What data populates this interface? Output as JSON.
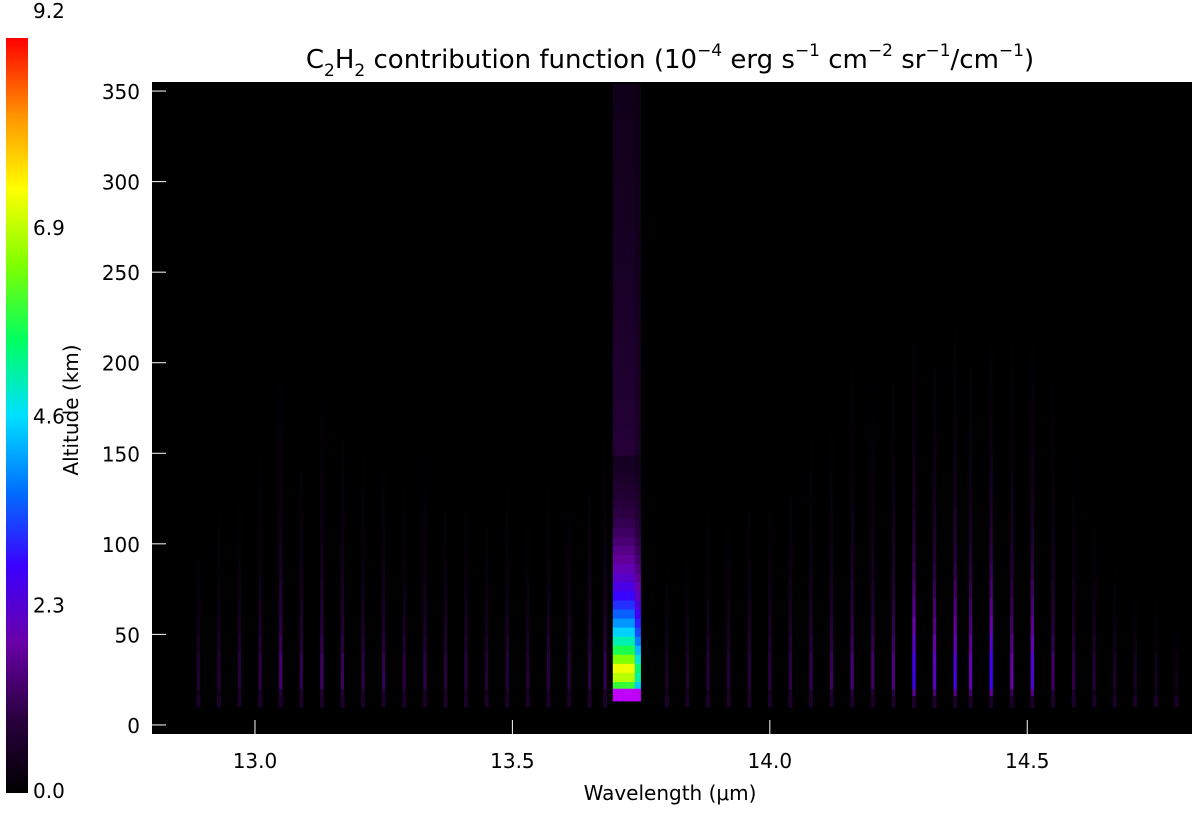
{
  "chart_data": {
    "type": "heatmap",
    "title": {
      "molecule_main": "C",
      "molecule_sub1": "2",
      "molecule_mid": "H",
      "molecule_sub2": "2",
      "rest_1": " contribution function (10",
      "exp_1": "−4",
      "rest_2": " erg s",
      "exp_2": "−1",
      "rest_3": " cm",
      "exp_3": "−2",
      "rest_4": " sr",
      "exp_4": "−1",
      "rest_5": "/cm",
      "exp_5": "−1",
      "rest_6": ")"
    },
    "xlabel": "Wavelength (μm)",
    "ylabel": "Altitude (km)",
    "xlim": [
      12.8,
      14.82
    ],
    "ylim": [
      -5,
      355
    ],
    "x_ticks": [
      {
        "value": 13.0,
        "label": "13.0"
      },
      {
        "value": 13.5,
        "label": "13.5"
      },
      {
        "value": 14.0,
        "label": "14.0"
      },
      {
        "value": 14.5,
        "label": "14.5"
      }
    ],
    "y_ticks": [
      {
        "value": 0,
        "label": "0"
      },
      {
        "value": 50,
        "label": "50"
      },
      {
        "value": 100,
        "label": "100"
      },
      {
        "value": 150,
        "label": "150"
      },
      {
        "value": 200,
        "label": "200"
      },
      {
        "value": 250,
        "label": "250"
      },
      {
        "value": 300,
        "label": "300"
      },
      {
        "value": 350,
        "label": "350"
      }
    ],
    "colorbar": {
      "range": [
        0.0,
        9.2
      ],
      "tick_labels": [
        {
          "value": 0.0,
          "label": "0.0"
        },
        {
          "value": 2.3,
          "label": "2.3"
        },
        {
          "value": 4.6,
          "label": "4.6"
        },
        {
          "value": 6.9,
          "label": "6.9"
        },
        {
          "value": 9.2,
          "label": "9.2"
        }
      ],
      "colors": [
        "#000000",
        "#2a0040",
        "#6a00a8",
        "#3b00ff",
        "#0070ff",
        "#00e0ff",
        "#00ff60",
        "#80ff00",
        "#ffff00",
        "#ff9000",
        "#ff0000"
      ]
    },
    "band_center": {
      "x": 13.72,
      "peak_value": 7.5,
      "peak_altitude": 30,
      "top_altitude": 350
    },
    "lines": [
      {
        "x": 12.89,
        "peak": 0.8
      },
      {
        "x": 12.93,
        "peak": 0.9
      },
      {
        "x": 12.97,
        "peak": 1.0
      },
      {
        "x": 13.01,
        "peak": 1.1
      },
      {
        "x": 13.05,
        "peak": 1.5
      },
      {
        "x": 13.09,
        "peak": 1.2
      },
      {
        "x": 13.13,
        "peak": 1.4
      },
      {
        "x": 13.17,
        "peak": 1.3
      },
      {
        "x": 13.21,
        "peak": 1.1
      },
      {
        "x": 13.25,
        "peak": 1.2
      },
      {
        "x": 13.29,
        "peak": 1.0
      },
      {
        "x": 13.33,
        "peak": 1.1
      },
      {
        "x": 13.37,
        "peak": 1.0
      },
      {
        "x": 13.41,
        "peak": 1.0
      },
      {
        "x": 13.45,
        "peak": 0.9
      },
      {
        "x": 13.49,
        "peak": 1.0
      },
      {
        "x": 13.53,
        "peak": 0.9
      },
      {
        "x": 13.57,
        "peak": 1.0
      },
      {
        "x": 13.61,
        "peak": 1.0
      },
      {
        "x": 13.65,
        "peak": 1.1
      },
      {
        "x": 13.68,
        "peak": 1.2
      },
      {
        "x": 13.8,
        "peak": 0.7
      },
      {
        "x": 13.84,
        "peak": 0.8
      },
      {
        "x": 13.88,
        "peak": 0.9
      },
      {
        "x": 13.92,
        "peak": 0.9
      },
      {
        "x": 13.96,
        "peak": 1.0
      },
      {
        "x": 14.0,
        "peak": 1.0
      },
      {
        "x": 14.04,
        "peak": 1.1
      },
      {
        "x": 14.08,
        "peak": 1.2
      },
      {
        "x": 14.12,
        "peak": 1.3
      },
      {
        "x": 14.16,
        "peak": 1.5
      },
      {
        "x": 14.2,
        "peak": 1.4
      },
      {
        "x": 14.24,
        "peak": 1.6
      },
      {
        "x": 14.28,
        "peak": 2.9
      },
      {
        "x": 14.32,
        "peak": 2.4
      },
      {
        "x": 14.36,
        "peak": 2.7
      },
      {
        "x": 14.39,
        "peak": 2.2
      },
      {
        "x": 14.43,
        "peak": 3.0
      },
      {
        "x": 14.47,
        "peak": 2.0
      },
      {
        "x": 14.51,
        "peak": 2.6
      },
      {
        "x": 14.55,
        "peak": 1.4
      },
      {
        "x": 14.59,
        "peak": 1.1
      },
      {
        "x": 14.63,
        "peak": 0.9
      },
      {
        "x": 14.67,
        "peak": 0.7
      },
      {
        "x": 14.71,
        "peak": 0.6
      },
      {
        "x": 14.75,
        "peak": 0.5
      },
      {
        "x": 14.79,
        "peak": 0.4
      }
    ],
    "grid": false,
    "legend": "colorbar-left"
  }
}
